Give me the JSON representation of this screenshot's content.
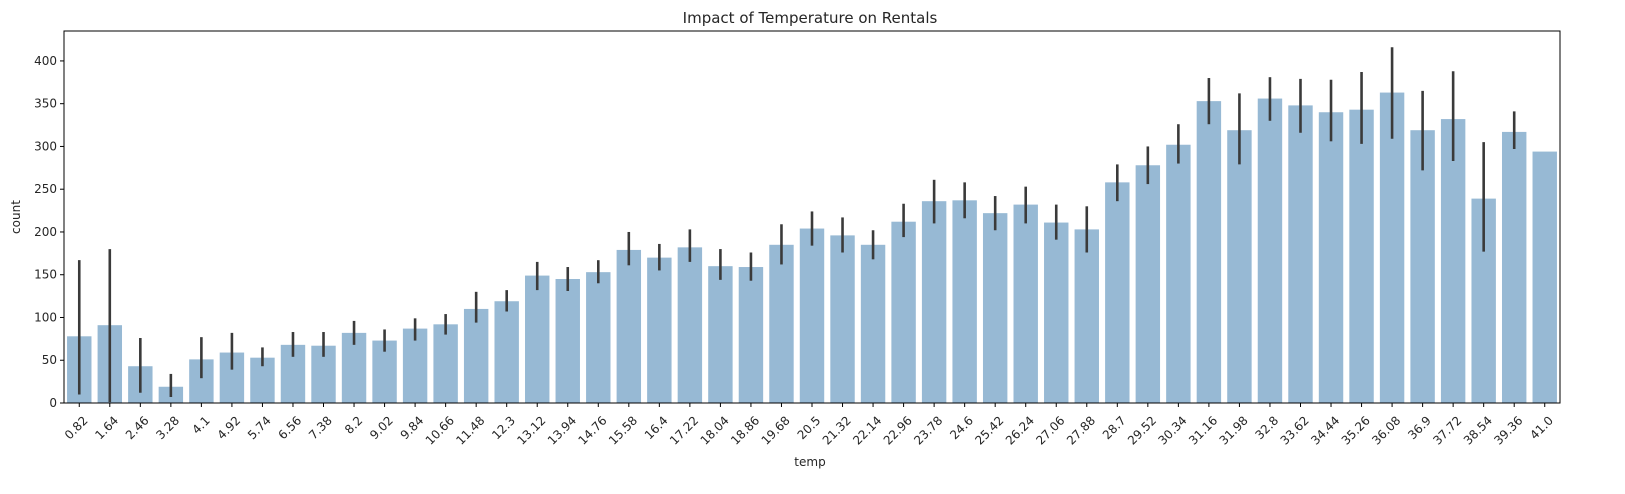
{
  "chart_data": {
    "type": "bar",
    "title": "Impact of Temperature on Rentals",
    "xlabel": "temp",
    "ylabel": "count",
    "ylim": [
      0,
      435
    ],
    "yticks": [
      0,
      50,
      100,
      150,
      200,
      250,
      300,
      350,
      400
    ],
    "grid": false,
    "bar_color": "#97b9d4",
    "errorbar_color": "#3a3a3a",
    "categories": [
      "0.82",
      "1.64",
      "2.46",
      "3.28",
      "4.1",
      "4.92",
      "5.74",
      "6.56",
      "7.38",
      "8.2",
      "9.02",
      "9.84",
      "10.66",
      "11.48",
      "12.3",
      "13.12",
      "13.94",
      "14.76",
      "15.58",
      "16.4",
      "17.22",
      "18.04",
      "18.86",
      "19.68",
      "20.5",
      "21.32",
      "22.14",
      "22.96",
      "23.78",
      "24.6",
      "25.42",
      "26.24",
      "27.06",
      "27.88",
      "28.7",
      "29.52",
      "30.34",
      "31.16",
      "31.98",
      "32.8",
      "33.62",
      "34.44",
      "35.26",
      "36.08",
      "36.9",
      "37.72",
      "38.54",
      "39.36",
      "41.0"
    ],
    "values": [
      78,
      91,
      43,
      19,
      51,
      59,
      53,
      68,
      67,
      82,
      73,
      87,
      92,
      110,
      119,
      149,
      145,
      153,
      179,
      170,
      182,
      160,
      159,
      185,
      204,
      196,
      185,
      212,
      236,
      237,
      222,
      232,
      211,
      203,
      258,
      278,
      302,
      353,
      319,
      356,
      348,
      340,
      343,
      363,
      319,
      332,
      239,
      317,
      294
    ],
    "error_low": [
      10,
      1,
      12,
      7,
      29,
      39,
      43,
      54,
      54,
      68,
      60,
      73,
      80,
      94,
      107,
      132,
      131,
      140,
      161,
      155,
      165,
      144,
      143,
      162,
      184,
      176,
      168,
      194,
      210,
      216,
      202,
      210,
      191,
      176,
      236,
      256,
      280,
      326,
      279,
      330,
      316,
      306,
      303,
      309,
      272,
      283,
      177,
      297,
      294
    ],
    "error_high": [
      167,
      180,
      76,
      34,
      77,
      82,
      65,
      83,
      83,
      96,
      86,
      99,
      104,
      130,
      132,
      165,
      159,
      167,
      200,
      186,
      203,
      180,
      176,
      209,
      224,
      217,
      202,
      233,
      261,
      258,
      242,
      253,
      232,
      230,
      279,
      300,
      326,
      380,
      362,
      381,
      379,
      378,
      387,
      416,
      365,
      388,
      305,
      341,
      294
    ]
  }
}
